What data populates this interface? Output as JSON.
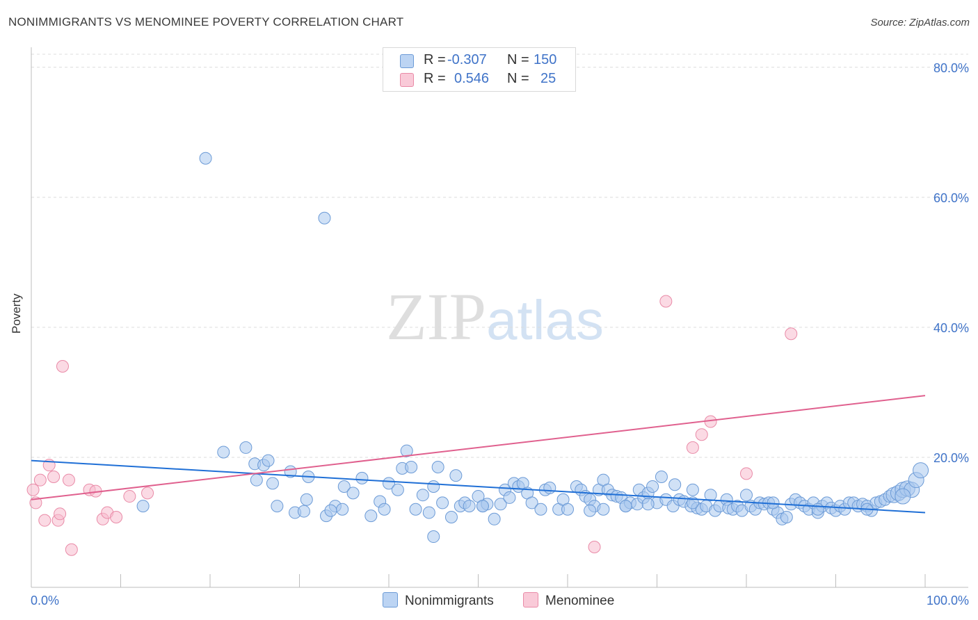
{
  "title": "NONIMMIGRANTS VS MENOMINEE POVERTY CORRELATION CHART",
  "source": "Source: ZipAtlas.com",
  "watermark": {
    "zip": "ZIP",
    "atlas": "atlas"
  },
  "legend": {
    "rows": [
      {
        "r_label": "R =",
        "r_value": "-0.307",
        "n_label": "N =",
        "n_value": "150"
      },
      {
        "r_label": "R =",
        "r_value": "0.546",
        "n_label": "N =",
        "n_value": "25"
      }
    ]
  },
  "bottom_legend": {
    "series1": "Nonimmigrants",
    "series2": "Menominee"
  },
  "colors": {
    "blue_fill": "#a9c8ef",
    "blue_stroke": "#6b9ad6",
    "blue_line": "#1f6fd6",
    "pink_fill": "#f7bccd",
    "pink_stroke": "#e98aa7",
    "pink_line": "#e0608e",
    "tick_label": "#3f73c8"
  },
  "chart_data": {
    "type": "scatter",
    "title": "NONIMMIGRANTS VS MENOMINEE POVERTY CORRELATION CHART",
    "xlabel": "",
    "ylabel": "Poverty",
    "xlim": [
      0,
      100
    ],
    "ylim": [
      0,
      85
    ],
    "x_tick_labels": [
      "0.0%",
      "100.0%"
    ],
    "y_tick_labels": [
      "20.0%",
      "40.0%",
      "60.0%",
      "80.0%"
    ],
    "y_ticks": [
      20,
      40,
      60,
      80
    ],
    "grid": "horizontal dashed",
    "series": [
      {
        "name": "Nonimmigrants",
        "r": -0.307,
        "n": 150,
        "trend": [
          [
            0,
            19.5
          ],
          [
            100,
            11.5
          ]
        ],
        "points": [
          [
            19.5,
            66
          ],
          [
            32.8,
            56.8
          ],
          [
            21.5,
            20.8
          ],
          [
            24,
            21.5
          ],
          [
            25,
            19
          ],
          [
            26,
            18.8
          ],
          [
            26.5,
            19.5
          ],
          [
            25.2,
            16.5
          ],
          [
            27,
            16
          ],
          [
            29,
            17.8
          ],
          [
            31,
            17
          ],
          [
            12.5,
            12.5
          ],
          [
            27.5,
            12.5
          ],
          [
            29.5,
            11.5
          ],
          [
            30.5,
            11.7
          ],
          [
            30.8,
            13.5
          ],
          [
            33,
            11
          ],
          [
            34,
            12.5
          ],
          [
            34.8,
            12
          ],
          [
            33.5,
            11.8
          ],
          [
            35,
            15.5
          ],
          [
            36,
            14.5
          ],
          [
            37,
            16.8
          ],
          [
            38,
            11
          ],
          [
            39,
            13.2
          ],
          [
            39.5,
            12
          ],
          [
            40,
            16
          ],
          [
            41,
            15
          ],
          [
            42,
            21
          ],
          [
            41.5,
            18.3
          ],
          [
            42.5,
            18.5
          ],
          [
            43,
            12
          ],
          [
            43.8,
            14.2
          ],
          [
            44.5,
            11.5
          ],
          [
            45,
            15.5
          ],
          [
            45.5,
            18.5
          ],
          [
            46,
            13
          ],
          [
            47,
            10.8
          ],
          [
            47.5,
            17.2
          ],
          [
            48,
            12.5
          ],
          [
            48.5,
            13
          ],
          [
            49,
            12.5
          ],
          [
            50,
            14
          ],
          [
            50.5,
            12.5
          ],
          [
            51,
            12.8
          ],
          [
            51.8,
            10.5
          ],
          [
            52.5,
            12.8
          ],
          [
            53,
            15
          ],
          [
            53.5,
            13.8
          ],
          [
            54,
            16
          ],
          [
            54.5,
            15.5
          ],
          [
            55,
            16
          ],
          [
            55.5,
            14.5
          ],
          [
            56,
            13
          ],
          [
            57,
            12
          ],
          [
            57.5,
            15
          ],
          [
            58,
            15.3
          ],
          [
            59,
            12
          ],
          [
            59.5,
            13.5
          ],
          [
            60,
            12
          ],
          [
            61,
            15.5
          ],
          [
            61.5,
            15
          ],
          [
            62,
            14
          ],
          [
            62.5,
            13.5
          ],
          [
            63,
            12.5
          ],
          [
            63.5,
            15
          ],
          [
            64,
            16.5
          ],
          [
            64.5,
            15
          ],
          [
            65,
            14.2
          ],
          [
            65.5,
            14
          ],
          [
            66,
            13.8
          ],
          [
            66.5,
            12.5
          ],
          [
            67,
            13
          ],
          [
            67.8,
            12.8
          ],
          [
            68,
            15
          ],
          [
            68.5,
            13.8
          ],
          [
            69,
            14.5
          ],
          [
            69.5,
            15.5
          ],
          [
            70,
            13
          ],
          [
            70.5,
            17
          ],
          [
            71,
            13.5
          ],
          [
            71.8,
            12.5
          ],
          [
            72,
            15.8
          ],
          [
            72.5,
            13.5
          ],
          [
            73,
            13.2
          ],
          [
            73.8,
            12.5
          ],
          [
            74,
            15
          ],
          [
            74.5,
            12.2
          ],
          [
            75,
            12
          ],
          [
            75.5,
            12.5
          ],
          [
            76,
            14.2
          ],
          [
            76.5,
            11.8
          ],
          [
            77,
            12.5
          ],
          [
            77.8,
            13.5
          ],
          [
            78,
            12.2
          ],
          [
            78.5,
            12
          ],
          [
            79,
            12.5
          ],
          [
            79.5,
            11.8
          ],
          [
            80,
            14.2
          ],
          [
            80.5,
            12.5
          ],
          [
            81,
            12
          ],
          [
            81.5,
            13
          ],
          [
            82,
            12.8
          ],
          [
            82.5,
            13
          ],
          [
            83,
            12
          ],
          [
            83.5,
            11.5
          ],
          [
            84,
            10.5
          ],
          [
            84.5,
            10.8
          ],
          [
            85,
            12.8
          ],
          [
            85.5,
            13.5
          ],
          [
            86,
            13
          ],
          [
            86.5,
            12.5
          ],
          [
            87,
            12
          ],
          [
            87.5,
            13
          ],
          [
            88,
            11.5
          ],
          [
            88.5,
            12.5
          ],
          [
            89,
            13
          ],
          [
            89.5,
            12.2
          ],
          [
            90,
            11.8
          ],
          [
            90.5,
            12.5
          ],
          [
            91,
            12
          ],
          [
            91.5,
            13
          ],
          [
            92,
            13
          ],
          [
            92.5,
            12.5
          ],
          [
            93,
            12.8
          ],
          [
            93.5,
            12.5
          ],
          [
            94,
            11.8
          ],
          [
            94.5,
            13
          ],
          [
            95,
            13.2
          ],
          [
            95.5,
            13.5
          ],
          [
            96,
            14
          ],
          [
            96.5,
            14.2
          ],
          [
            97,
            14.5
          ],
          [
            97.5,
            15
          ],
          [
            98,
            15.2
          ],
          [
            98.5,
            15
          ],
          [
            99,
            16.5
          ],
          [
            99.5,
            18
          ],
          [
            45,
            7.8
          ],
          [
            50.5,
            12.5
          ],
          [
            62.5,
            11.8
          ],
          [
            64,
            12
          ],
          [
            66.5,
            12.5
          ],
          [
            69,
            12.8
          ],
          [
            74,
            13
          ],
          [
            83,
            13
          ],
          [
            88,
            12
          ],
          [
            93.5,
            12
          ],
          [
            97.5,
            14
          ]
        ]
      },
      {
        "name": "Menominee",
        "r": 0.546,
        "n": 25,
        "trend": [
          [
            0,
            13.5
          ],
          [
            100,
            29.5
          ]
        ],
        "points": [
          [
            0.2,
            15
          ],
          [
            0.5,
            13
          ],
          [
            1,
            16.5
          ],
          [
            1.5,
            10.3
          ],
          [
            2,
            18.8
          ],
          [
            2.5,
            17
          ],
          [
            3,
            10.3
          ],
          [
            3.2,
            11.3
          ],
          [
            3.5,
            34
          ],
          [
            4.2,
            16.5
          ],
          [
            4.5,
            5.8
          ],
          [
            6.5,
            15
          ],
          [
            7.2,
            14.8
          ],
          [
            8,
            10.5
          ],
          [
            8.5,
            11.5
          ],
          [
            9.5,
            10.8
          ],
          [
            11,
            14
          ],
          [
            13,
            14.5
          ],
          [
            63,
            6.2
          ],
          [
            71,
            44
          ],
          [
            74,
            21.5
          ],
          [
            75,
            23.5
          ],
          [
            76,
            25.5
          ],
          [
            80,
            17.5
          ],
          [
            85,
            39
          ]
        ]
      }
    ]
  }
}
